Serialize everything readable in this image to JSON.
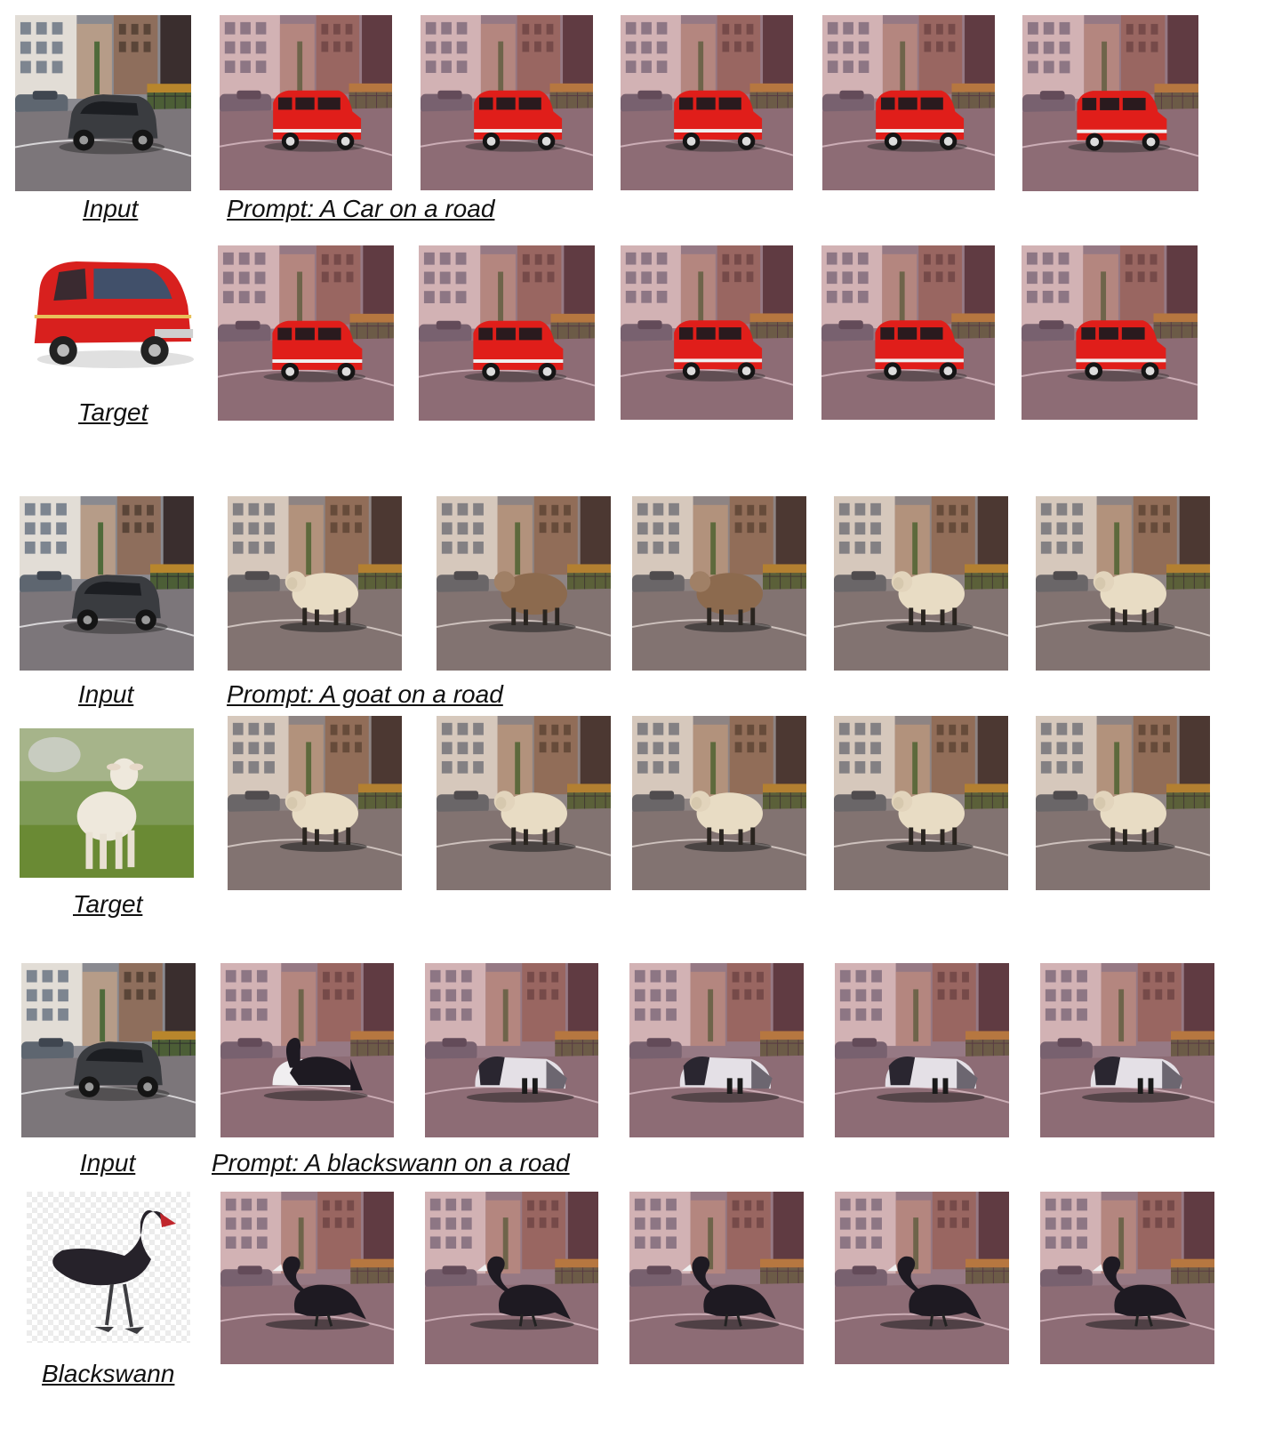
{
  "groups": [
    {
      "input_label": "Input",
      "reference_label": "Target",
      "prompt": "Prompt: A Car on a road",
      "subject": "red-van"
    },
    {
      "input_label": "Input",
      "reference_label": "Target",
      "prompt": "Prompt: A goat on a road",
      "subject": "sheep"
    },
    {
      "input_label": "Input",
      "reference_label": "Blackswann",
      "prompt": "Prompt: A blackswann on a road",
      "subject": "black-swan"
    }
  ],
  "colors": {
    "road": "#7a7378",
    "building_light": "#d8d2cc",
    "building_dark": "#6b4a3e",
    "van": "#d8201e",
    "sheep": "#e8dcc4",
    "swan": "#1e1a22",
    "grass": "#6f8f3c",
    "tint_pink": "#b0566e"
  }
}
